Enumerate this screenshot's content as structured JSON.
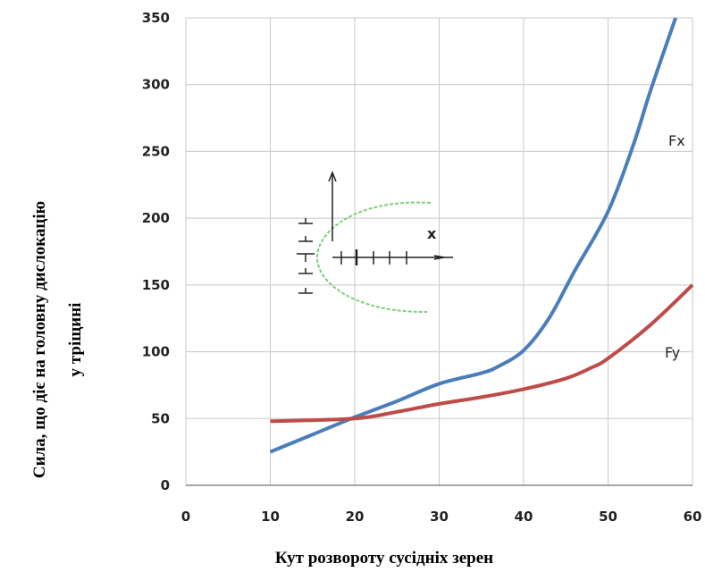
{
  "chart_data": {
    "type": "line",
    "x_label": "Кут розвороту сусідніх зерен",
    "y_label": [
      "Сила, що діє на головну дислокацію",
      "у тріщині"
    ],
    "inset_label": "x",
    "xlim": [
      0,
      60
    ],
    "xticks": [
      0,
      10,
      20,
      30,
      40,
      50,
      60
    ],
    "ylim": [
      0,
      350
    ],
    "yticks": [
      0,
      50,
      100,
      150,
      200,
      250,
      300,
      350
    ],
    "grid": true,
    "series": [
      {
        "name": "Fx",
        "color": "#4a7ebb",
        "x": [
          10,
          15,
          20,
          25,
          30,
          35,
          37,
          40,
          43,
          46,
          50,
          53,
          55,
          58
        ],
        "values": [
          25,
          38,
          51,
          63,
          76,
          84,
          89,
          101,
          125,
          160,
          205,
          255,
          295,
          350
        ]
      },
      {
        "name": "Fy",
        "color": "#be4b48",
        "x": [
          10,
          20,
          25,
          30,
          35,
          40,
          45,
          48,
          50,
          55,
          60
        ],
        "values": [
          48,
          50,
          55,
          61,
          66,
          72,
          80,
          88,
          95,
          120,
          150
        ]
      }
    ]
  }
}
